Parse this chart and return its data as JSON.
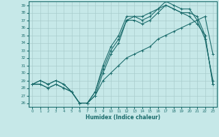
{
  "xlabel": "Humidex (Indice chaleur)",
  "bg_color": "#c6e8e8",
  "line_color": "#1a6b6b",
  "grid_color": "#a8cccc",
  "xlim": [
    -0.5,
    23.5
  ],
  "ylim": [
    25.5,
    39.5
  ],
  "xticks": [
    0,
    1,
    2,
    3,
    4,
    5,
    6,
    7,
    8,
    9,
    10,
    11,
    12,
    13,
    14,
    15,
    16,
    17,
    18,
    19,
    20,
    21,
    22,
    23
  ],
  "yticks": [
    26,
    27,
    28,
    29,
    30,
    31,
    32,
    33,
    34,
    35,
    36,
    37,
    38,
    39
  ],
  "series": [
    {
      "x": [
        0,
        1,
        2,
        3,
        4,
        5,
        6,
        7,
        8,
        9,
        10,
        11,
        12,
        13,
        14,
        15,
        16,
        17,
        18,
        19,
        20,
        21,
        22,
        23
      ],
      "y": [
        28.5,
        29.0,
        28.5,
        29.0,
        28.5,
        27.5,
        26.0,
        26.0,
        27.5,
        31.0,
        33.5,
        35.0,
        37.5,
        37.5,
        37.5,
        38.0,
        38.5,
        39.5,
        39.0,
        38.5,
        38.5,
        37.0,
        34.5,
        29.0
      ]
    },
    {
      "x": [
        0,
        1,
        2,
        3,
        4,
        5,
        6,
        7,
        8,
        9,
        10,
        11,
        12,
        13,
        14,
        15,
        16,
        17,
        18,
        19,
        20,
        21,
        22,
        23
      ],
      "y": [
        28.5,
        29.0,
        28.5,
        29.0,
        28.5,
        27.5,
        26.0,
        26.0,
        27.5,
        30.5,
        33.0,
        34.5,
        37.0,
        37.5,
        37.0,
        37.5,
        38.5,
        39.0,
        38.5,
        38.0,
        38.0,
        37.5,
        35.0,
        28.5
      ]
    },
    {
      "x": [
        0,
        1,
        2,
        3,
        4,
        5,
        6,
        7,
        8,
        9,
        10,
        11,
        12,
        13,
        14,
        15,
        16,
        17,
        18,
        19,
        20,
        21,
        22,
        23
      ],
      "y": [
        28.5,
        28.5,
        28.0,
        28.5,
        28.0,
        27.5,
        26.0,
        26.0,
        27.0,
        29.0,
        30.0,
        31.0,
        32.0,
        32.5,
        33.0,
        33.5,
        34.5,
        35.0,
        35.5,
        36.0,
        36.5,
        37.0,
        37.5,
        32.5
      ]
    },
    {
      "x": [
        0,
        1,
        2,
        3,
        4,
        5,
        6,
        7,
        8,
        9,
        10,
        11,
        12,
        13,
        14,
        15,
        16,
        17,
        18,
        19,
        20,
        21,
        22,
        23
      ],
      "y": [
        28.5,
        28.5,
        28.0,
        28.5,
        28.0,
        27.5,
        26.0,
        26.0,
        27.0,
        30.0,
        32.5,
        34.0,
        37.0,
        37.0,
        36.5,
        37.0,
        38.0,
        39.0,
        38.5,
        38.0,
        37.5,
        36.5,
        35.0,
        28.5
      ]
    }
  ]
}
